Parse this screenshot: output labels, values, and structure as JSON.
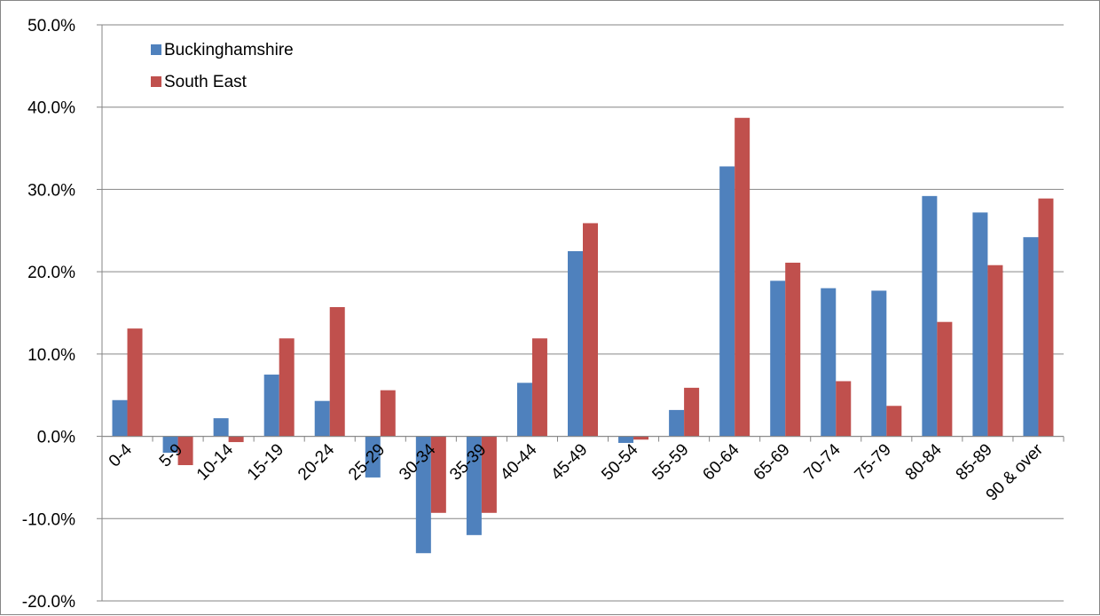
{
  "chart_data": {
    "type": "bar",
    "categories": [
      "0-4",
      "5-9",
      "10-14",
      "15-19",
      "20-24",
      "25-29",
      "30-34",
      "35-39",
      "40-44",
      "45-49",
      "50-54",
      "55-59",
      "60-64",
      "65-69",
      "70-74",
      "75-79",
      "80-84",
      "85-89",
      "90 & over"
    ],
    "series": [
      {
        "name": "Buckinghamshire",
        "color": "#4F81BD",
        "values": [
          4.4,
          -2.0,
          2.2,
          7.5,
          4.3,
          -5.0,
          -14.2,
          -12.0,
          6.5,
          22.5,
          -0.8,
          3.2,
          32.8,
          18.9,
          18.0,
          17.7,
          29.2,
          27.2,
          24.2
        ]
      },
      {
        "name": "South East",
        "color": "#C0504D",
        "values": [
          13.1,
          -3.5,
          -0.7,
          11.9,
          15.7,
          5.6,
          -9.3,
          -9.3,
          11.9,
          25.9,
          -0.4,
          5.9,
          38.7,
          21.1,
          6.7,
          3.7,
          13.9,
          20.8,
          28.9
        ]
      }
    ],
    "y_ticks": [
      "50.0%",
      "40.0%",
      "30.0%",
      "20.0%",
      "10.0%",
      "0.0%",
      "-10.0%",
      "-20.0%"
    ],
    "ylim": [
      -20,
      50
    ],
    "unit": "%",
    "grid": true,
    "legend_position": "top-left"
  }
}
